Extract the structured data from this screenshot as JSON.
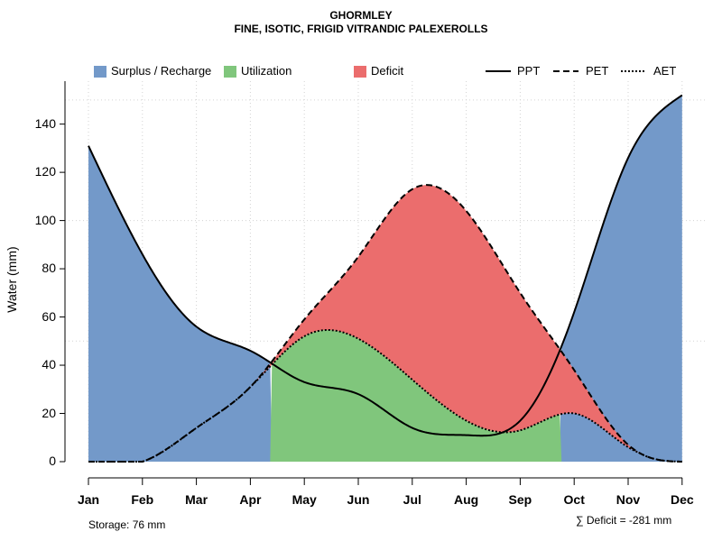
{
  "chart_data": {
    "type": "area",
    "title": "GHORMLEY",
    "subtitle": "FINE, ISOTIC, FRIGID VITRANDIC PALEXEROLLS",
    "ylabel": "Water (mm)",
    "xlabel": "",
    "ylim": [
      0,
      155
    ],
    "yticks": [
      0,
      20,
      40,
      60,
      80,
      100,
      120,
      140
    ],
    "categories": [
      "Jan",
      "Feb",
      "Mar",
      "Apr",
      "May",
      "Jun",
      "Jul",
      "Aug",
      "Sep",
      "Oct",
      "Nov",
      "Dec"
    ],
    "legend_position": "top",
    "legend": [
      {
        "key": "surplus",
        "label": "Surplus / Recharge",
        "kind": "fill",
        "color": "#7399C9"
      },
      {
        "key": "utilization",
        "label": "Utilization",
        "kind": "fill",
        "color": "#80C67C"
      },
      {
        "key": "deficit",
        "label": "Deficit",
        "kind": "fill",
        "color": "#EB6D6D"
      },
      {
        "key": "ppt",
        "label": "PPT",
        "kind": "line",
        "dash": "solid"
      },
      {
        "key": "pet",
        "label": "PET",
        "kind": "line",
        "dash": "dashed"
      },
      {
        "key": "aet",
        "label": "AET",
        "kind": "line",
        "dash": "dotted"
      }
    ],
    "series": [
      {
        "name": "PPT",
        "values": [
          131,
          86,
          56,
          46,
          33,
          28,
          14,
          11,
          17,
          62,
          126,
          152
        ]
      },
      {
        "name": "PET",
        "values": [
          0,
          0,
          14,
          31,
          59,
          85,
          113,
          104,
          70,
          38,
          7,
          0
        ]
      },
      {
        "name": "AET",
        "values": [
          0,
          0,
          14,
          31,
          52,
          51,
          34,
          17,
          13,
          20,
          6,
          0
        ]
      }
    ],
    "storage_label": "Storage: 76 mm",
    "deficit_label": "∑ Deficit = -281 mm",
    "colors": {
      "surplus": "#7399C9",
      "utilization": "#80C67C",
      "deficit": "#EB6D6D",
      "line": "#000000",
      "grid": "#D3D3D3"
    }
  }
}
